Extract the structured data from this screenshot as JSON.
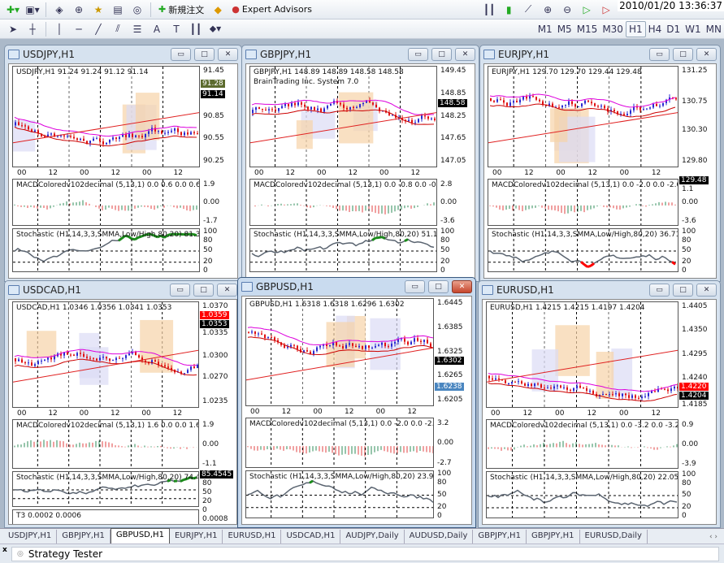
{
  "toolbar": {
    "new_order_label": "新規注文",
    "expert_advisors_label": "Expert Advisors",
    "clock": "2010/01/20 13:36:37",
    "timeframes": [
      "M1",
      "M5",
      "M15",
      "M30",
      "H1",
      "H4",
      "D1",
      "W1",
      "MN"
    ],
    "active_timeframe": "H1"
  },
  "windows": [
    {
      "title": "USDJPY,H1",
      "active": false,
      "header": "USDJPY,H1  91.24 91.24 91.12 91.14",
      "subheader": "",
      "price_axis": [
        "91.45",
        "90.85",
        "90.55",
        "90.25"
      ],
      "price_tags": [
        {
          "value": "91.28",
          "bg": "#5c6b2e"
        },
        {
          "value": "91.14",
          "bg": "#000000"
        }
      ],
      "time_axis": [
        "00",
        "12",
        "00",
        "12",
        "00",
        "12"
      ],
      "macd": {
        "label": "MACDColoredv102decimal (5,13,1) 0.0 0.6 0.0 0.6",
        "axis": [
          "1.9",
          "0.00",
          "-1.7"
        ]
      },
      "stoch": {
        "label": "Stochastic (H1,14,3,3,SMMA,Low/High,80,20) 81.3523 75.0000",
        "axis": [
          "100",
          "80",
          "50",
          "20",
          "0"
        ]
      }
    },
    {
      "title": "GBPJPY,H1",
      "active": false,
      "header": "GBPJPY,H1  148.89 148.89 148.58 148.58",
      "subheader": "BrainTrading Inc. System 7.0",
      "price_axis": [
        "149.45",
        "148.85",
        "148.25",
        "147.65",
        "147.05"
      ],
      "price_tags": [
        {
          "value": "148.58",
          "bg": "#000000"
        }
      ],
      "time_axis": [
        "00",
        "12",
        "00",
        "12",
        "00",
        "12"
      ],
      "macd": {
        "label": "MACDColoredv102decimal (5,13,1) 0.0 -0.8 0.0 -0.8",
        "axis": [
          "2.8",
          "0.00",
          "-3.6"
        ]
      },
      "stoch": {
        "label": "Stochastic (H1,14,3,3,SMMA,Low/High,80,20) 51.1473 37.4194",
        "axis": [
          "100",
          "80",
          "50",
          "20",
          "0"
        ]
      }
    },
    {
      "title": "EURJPY,H1",
      "active": false,
      "header": "EURJPY,H1  129.70 129.70 129.44 129.48",
      "subheader": "",
      "price_axis": [
        "131.25",
        "130.75",
        "130.30",
        "129.80"
      ],
      "price_tags": [
        {
          "value": "129.48",
          "bg": "#000000"
        }
      ],
      "time_axis": [
        "00",
        "12",
        "00",
        "12",
        "00",
        "12"
      ],
      "macd": {
        "label": "MACDColoredv102decimal (5,13,1) 0.0 -2.0 0.0 -2.0",
        "axis": [
          "1.1",
          "0.00",
          "-3.6"
        ]
      },
      "stoch": {
        "label": "Stochastic (H1,14,3,3,SMMA,Low/High,80,20) 36.7129 21.9933",
        "axis": [
          "100",
          "80",
          "50",
          "20",
          "0"
        ]
      }
    },
    {
      "title": "USDCAD,H1",
      "active": false,
      "header": "USDCAD,H1  1.0346 1.0356 1.0341 1.0353",
      "subheader": "",
      "price_axis": [
        "1.0370",
        "1.0335",
        "1.0300",
        "1.0270",
        "1.0235"
      ],
      "price_tags": [
        {
          "value": "1.0359",
          "bg": "#ff0000"
        },
        {
          "value": "1.0353",
          "bg": "#000000"
        }
      ],
      "time_axis": [
        "00",
        "12",
        "00",
        "12",
        "00",
        "12"
      ],
      "macd": {
        "label": "MACDColoredv102decimal (5,13,1) 1.6 0.0 0.0 1.6",
        "axis": [
          "1.9",
          "0.00",
          "-1.1"
        ]
      },
      "stoch": {
        "label": "Stochastic (H1,14,3,3,SMMA,Low/High,80,20) 74.4181 81.0356",
        "axis": [
          "80",
          "50",
          "20",
          "0"
        ],
        "tag": "85.4545"
      },
      "extra": {
        "label": "T3 0.0002 0.0006",
        "axis": [
          "0.0008"
        ]
      }
    },
    {
      "title": "GBPUSD,H1",
      "active": true,
      "header": "GBPUSD,H1  1.6318 1.6318 1.6296 1.6302",
      "subheader": "",
      "price_axis": [
        "1.6445",
        "1.6385",
        "1.6325",
        "1.6265",
        "1.6205"
      ],
      "price_tags": [
        {
          "value": "1.6302",
          "bg": "#000000"
        },
        {
          "value": "1.6238",
          "bg": "#4a86c0"
        }
      ],
      "time_axis": [
        "00",
        "12",
        "00",
        "12",
        "00",
        "12"
      ],
      "macd": {
        "label": "MACDColoredv102decimal (5,13,1) 0.0 -2.0 0.0 -2.0",
        "axis": [
          "3.2",
          "0.00",
          "-2.7"
        ]
      },
      "stoch": {
        "label": "Stochastic (H1,14,3,3,SMMA,Low/High,80,20) 23.9465 11.1524",
        "axis": [
          "100",
          "80",
          "50",
          "20",
          "0"
        ]
      }
    },
    {
      "title": "EURUSD,H1",
      "active": false,
      "header": "EURUSD,H1  1.4215 1.4215 1.4197 1.4204",
      "subheader": "",
      "price_axis": [
        "1.4405",
        "1.4350",
        "1.4295",
        "1.4240",
        "1.4185"
      ],
      "price_tags": [
        {
          "value": "1.4220",
          "bg": "#ff0000"
        },
        {
          "value": "1.4204",
          "bg": "#000000"
        }
      ],
      "time_axis": [
        "00",
        "12",
        "00",
        "12",
        "00",
        "12"
      ],
      "macd": {
        "label": "MACDColoredv102decimal (5,13,1) 0.0 -3.2 0.0 -3.2",
        "axis": [
          "0.9",
          "0.00",
          "-3.9"
        ]
      },
      "stoch": {
        "label": "Stochastic (H1,14,3,3,SMMA,Low/High,80,20) 22.0591 17.9191",
        "axis": [
          "100",
          "80",
          "50",
          "20",
          "0"
        ]
      }
    }
  ],
  "tabs": [
    "USDJPY,H1",
    "GBPJPY,H1",
    "GBPUSD,H1",
    "EURJPY,H1",
    "EURUSD,H1",
    "USDCAD,H1",
    "AUDJPY,Daily",
    "AUDUSD,Daily",
    "GBPJPY,H1",
    "GBPJPY,H1",
    "EURUSD,Daily"
  ],
  "active_tab": 2,
  "tab_nav": "‹ ›",
  "tester": {
    "close": "x",
    "label": "Strategy Tester"
  },
  "colors": {
    "bull": "#2a2ad0",
    "bear": "#e01010",
    "macd_up": "#2e8b57",
    "macd_down": "#e04040",
    "stoch": "#5a6470",
    "oversold": "#ff0000",
    "overbought": "#1a8a1a"
  }
}
